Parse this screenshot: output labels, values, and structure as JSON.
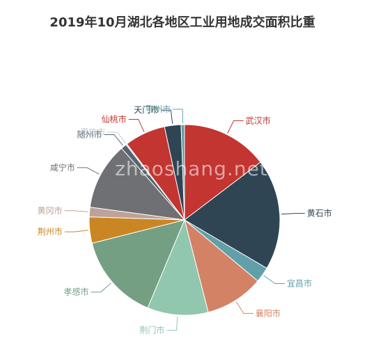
{
  "watermark": "zhaoshang.net",
  "chart_data": {
    "type": "pie",
    "title": "2019年10月湖北各地区工业用地成交面积比重",
    "slices": [
      {
        "name": "武汉市",
        "value": 15.2,
        "color": "#c23531"
      },
      {
        "name": "黄石市",
        "value": 19.5,
        "color": "#2f4554"
      },
      {
        "name": "宜昌市",
        "value": 2.7,
        "color": "#61a0a8"
      },
      {
        "name": "襄阳市",
        "value": 10.3,
        "color": "#d48265"
      },
      {
        "name": "荆门市",
        "value": 10.7,
        "color": "#91c7ae"
      },
      {
        "name": "孝感市",
        "value": 15.3,
        "color": "#749f83"
      },
      {
        "name": "荆州市",
        "value": 4.6,
        "color": "#ca8622"
      },
      {
        "name": "黄冈市",
        "value": 1.7,
        "color": "#bda29a"
      },
      {
        "name": "咸宁市",
        "value": 11.8,
        "color": "#6e7074"
      },
      {
        "name": "随州市",
        "value": 1.0,
        "color": "#546570"
      },
      {
        "name": "恩施市",
        "value": 0.2,
        "color": "#c4ccd3"
      },
      {
        "name": "仙桃市",
        "value": 7.2,
        "color": "#c23531"
      },
      {
        "name": "天门市",
        "value": 2.9,
        "color": "#2f4554"
      },
      {
        "name": "鄂州市",
        "value": 0.6,
        "color": "#61a0a8"
      }
    ]
  }
}
